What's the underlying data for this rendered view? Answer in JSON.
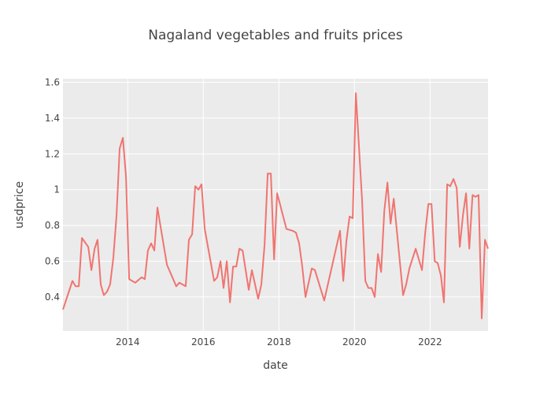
{
  "chart_data": {
    "type": "line",
    "title": "Nagaland vegetables and fruits prices",
    "xlabel": "date",
    "ylabel": "usdprice",
    "xlim": [
      "2012-04-15",
      "2023-07-15"
    ],
    "ylim": [
      0.21,
      1.62
    ],
    "x_ticks": [
      "2014",
      "2016",
      "2018",
      "2020",
      "2022"
    ],
    "y_ticks": [
      "0.4",
      "0.6",
      "0.8",
      "1",
      "1.2",
      "1.4",
      "1.6"
    ],
    "grid": true,
    "colors": {
      "line": "#f07470",
      "plot_bg": "#ebebeb",
      "grid": "#ffffff"
    },
    "series": [
      {
        "x": [
          "2012-04-15",
          "2012-07-15",
          "2012-08-15",
          "2012-09-15",
          "2012-10-15",
          "2012-12-15",
          "2013-01-15",
          "2013-02-15",
          "2013-03-15",
          "2013-04-15",
          "2013-05-15",
          "2013-06-15",
          "2013-07-15",
          "2013-08-15",
          "2013-09-15",
          "2013-10-15",
          "2013-11-15",
          "2013-12-15",
          "2014-01-15",
          "2014-03-15",
          "2014-05-15",
          "2014-06-15",
          "2014-07-15",
          "2014-08-15",
          "2014-09-15",
          "2014-10-15",
          "2014-11-15",
          "2015-01-15",
          "2015-04-15",
          "2015-05-15",
          "2015-07-15",
          "2015-08-15",
          "2015-09-15",
          "2015-10-15",
          "2015-11-15",
          "2015-12-15",
          "2016-01-15",
          "2016-04-15",
          "2016-05-15",
          "2016-06-15",
          "2016-07-15",
          "2016-08-15",
          "2016-09-15",
          "2016-10-15",
          "2016-11-15",
          "2016-12-15",
          "2017-01-15",
          "2017-03-15",
          "2017-04-15",
          "2017-06-15",
          "2017-07-15",
          "2017-08-15",
          "2017-09-15",
          "2017-10-15",
          "2017-11-15",
          "2017-12-15",
          "2018-03-15",
          "2018-05-15",
          "2018-06-15",
          "2018-07-15",
          "2018-08-15",
          "2018-09-15",
          "2018-11-15",
          "2018-12-15",
          "2019-03-15",
          "2019-08-15",
          "2019-09-15",
          "2019-10-15",
          "2019-11-15",
          "2019-12-15",
          "2020-01-15",
          "2020-03-15",
          "2020-04-15",
          "2020-05-15",
          "2020-06-15",
          "2020-07-15",
          "2020-08-15",
          "2020-09-15",
          "2020-10-15",
          "2020-11-15",
          "2020-12-15",
          "2021-01-15",
          "2021-04-15",
          "2021-05-15",
          "2021-06-15",
          "2021-08-15",
          "2021-10-15",
          "2021-11-15",
          "2021-12-15",
          "2022-01-15",
          "2022-02-15",
          "2022-03-15",
          "2022-04-15",
          "2022-05-15",
          "2022-06-15",
          "2022-07-15",
          "2022-08-15",
          "2022-09-15",
          "2022-10-15",
          "2022-11-15",
          "2022-12-15",
          "2023-01-15",
          "2023-02-15",
          "2023-03-15",
          "2023-04-15",
          "2023-05-15",
          "2023-06-15",
          "2023-07-15"
        ],
        "y": [
          0.33,
          0.49,
          0.46,
          0.46,
          0.73,
          0.68,
          0.55,
          0.67,
          0.72,
          0.47,
          0.41,
          0.43,
          0.47,
          0.62,
          0.86,
          1.23,
          1.29,
          1.07,
          0.5,
          0.48,
          0.51,
          0.5,
          0.66,
          0.7,
          0.66,
          0.9,
          0.79,
          0.58,
          0.46,
          0.48,
          0.46,
          0.72,
          0.75,
          1.02,
          1.0,
          1.03,
          0.78,
          0.49,
          0.51,
          0.6,
          0.45,
          0.6,
          0.37,
          0.57,
          0.57,
          0.67,
          0.66,
          0.44,
          0.55,
          0.39,
          0.47,
          0.69,
          1.09,
          1.09,
          0.61,
          0.98,
          0.78,
          0.77,
          0.76,
          0.7,
          0.57,
          0.4,
          0.56,
          0.55,
          0.38,
          0.77,
          0.49,
          0.71,
          0.85,
          0.84,
          1.54,
          0.94,
          0.49,
          0.45,
          0.45,
          0.4,
          0.64,
          0.54,
          0.88,
          1.04,
          0.81,
          0.95,
          0.41,
          0.47,
          0.56,
          0.67,
          0.55,
          0.76,
          0.92,
          0.92,
          0.6,
          0.59,
          0.52,
          0.37,
          1.03,
          1.02,
          1.06,
          1.01,
          0.68,
          0.86,
          0.98,
          0.67,
          0.97,
          0.96,
          0.97,
          0.28,
          0.72,
          0.67
        ]
      }
    ]
  }
}
